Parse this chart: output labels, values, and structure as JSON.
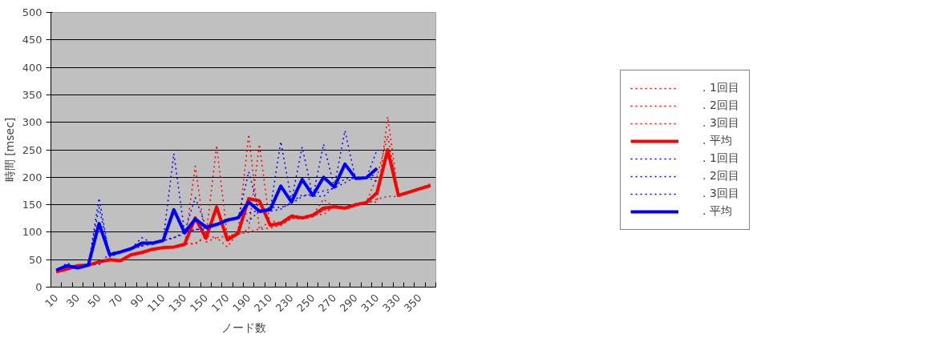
{
  "chart_data": {
    "type": "line",
    "xlabel": "ノード数",
    "ylabel": "時間 [msec]",
    "categories": [
      "10",
      null,
      "30",
      null,
      "50",
      null,
      "70",
      null,
      "90",
      null,
      "110",
      null,
      "130",
      null,
      "150",
      null,
      "170",
      null,
      "190",
      null,
      "210",
      null,
      "230",
      null,
      "250",
      null,
      "270",
      null,
      "290",
      null,
      "310",
      null,
      "330",
      null,
      "350",
      null
    ],
    "ylim": [
      0,
      500
    ],
    "yticks": [
      0,
      50,
      100,
      150,
      200,
      250,
      300,
      350,
      400,
      450,
      500
    ],
    "grid": "y",
    "legend": "right",
    "marker": "none",
    "series": [
      {
        "name": ". 1回目",
        "color": "#ff0000",
        "line_style": "dotted",
        "values": [
          27,
          32,
          38,
          40,
          45,
          49,
          48,
          58,
          62,
          68,
          71,
          72,
          76,
          220,
          82,
          90,
          73,
          100,
          278,
          105,
          108,
          112,
          125,
          124,
          128,
          140,
          145,
          142,
          148,
          152,
          160,
          165,
          165,
          172,
          178,
          183
        ]
      },
      {
        "name": ". 2回目",
        "color": "#ff0000",
        "line_style": "dotted",
        "values": [
          28,
          33,
          39,
          39,
          46,
          50,
          47,
          59,
          63,
          69,
          72,
          73,
          78,
          80,
          92,
          258,
          92,
          96,
          100,
          106,
          120,
          118,
          130,
          126,
          132,
          160,
          145,
          145,
          150,
          155,
          155,
          310,
          168,
          173,
          179,
          185
        ]
      },
      {
        "name": ". 3回目",
        "color": "#ff0000",
        "line_style": "dotted",
        "values": [
          29,
          34,
          40,
          41,
          47,
          51,
          49,
          60,
          64,
          70,
          73,
          74,
          80,
          78,
          93,
          90,
          93,
          98,
          105,
          260,
          111,
          118,
          132,
          128,
          133,
          132,
          148,
          145,
          152,
          155,
          201,
          275,
          168,
          174,
          180,
          188
        ]
      },
      {
        "name": ". 平均",
        "color": "#ff0000",
        "line_style": "solid",
        "values": [
          28,
          33,
          39,
          40,
          46,
          50,
          48,
          59,
          63,
          69,
          72,
          73,
          78,
          126,
          89,
          146,
          86,
          98,
          161,
          157,
          113,
          116,
          129,
          126,
          131,
          144,
          146,
          144,
          150,
          154,
          172,
          250,
          167,
          173,
          179,
          185
        ]
      },
      {
        "name": ". 1回目",
        "color": "#0000ff",
        "line_style": "dotted",
        "values": [
          30,
          44,
          35,
          39,
          162,
          55,
          63,
          70,
          90,
          80,
          86,
          243,
          100,
          163,
          110,
          114,
          120,
          128,
          135,
          140,
          145,
          145,
          152,
          165,
          170,
          175,
          180,
          190,
          200,
          200,
          205,
          null,
          null,
          null,
          null,
          null
        ]
      },
      {
        "name": ". 2回目",
        "color": "#0000ff",
        "line_style": "dotted",
        "values": [
          31,
          36,
          34,
          40,
          145,
          60,
          64,
          69,
          75,
          78,
          84,
          90,
          97,
          105,
          105,
          113,
          122,
          124,
          210,
          135,
          140,
          265,
          158,
          255,
          165,
          260,
          183,
          285,
          196,
          198,
          250,
          null,
          null,
          null,
          null,
          null
        ]
      },
      {
        "name": ". 3回目",
        "color": "#0000ff",
        "line_style": "dotted",
        "values": [
          32,
          37,
          36,
          41,
          41,
          62,
          65,
          71,
          75,
          82,
          85,
          90,
          100,
          104,
          112,
          115,
          124,
          126,
          120,
          139,
          138,
          142,
          155,
          168,
          166,
          165,
          183,
          197,
          198,
          199,
          193,
          null,
          null,
          null,
          null,
          null
        ]
      },
      {
        "name": ". 平均",
        "color": "#0000ff",
        "line_style": "solid",
        "values": [
          31,
          39,
          35,
          40,
          116,
          59,
          64,
          70,
          80,
          80,
          85,
          141,
          99,
          124,
          109,
          114,
          122,
          126,
          155,
          138,
          141,
          184,
          155,
          196,
          167,
          200,
          182,
          224,
          198,
          199,
          216,
          null,
          null,
          null,
          null,
          null
        ]
      }
    ]
  }
}
